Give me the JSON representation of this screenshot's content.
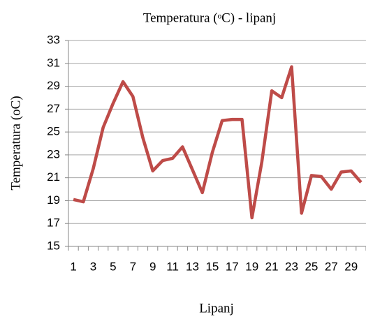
{
  "chart_data": {
    "type": "line",
    "title": "Temperatura (ᵒC) - lipanj",
    "y_label": "Temperatura (oC)",
    "x_label": "Lipanj",
    "categories": [
      1,
      null,
      3,
      null,
      5,
      null,
      7,
      null,
      9,
      null,
      11,
      null,
      13,
      null,
      15,
      null,
      17,
      null,
      19,
      null,
      21,
      null,
      23,
      null,
      25,
      null,
      27,
      null,
      29,
      null
    ],
    "series": [
      {
        "name": "Temperatura",
        "color": "#be4b48",
        "values": [
          19.1,
          18.9,
          21.8,
          25.4,
          27.5,
          29.4,
          28.1,
          24.5,
          21.6,
          22.5,
          22.7,
          23.7,
          21.7,
          19.7,
          23.2,
          26.0,
          26.1,
          26.1,
          17.5,
          22.4,
          28.6,
          28.0,
          30.7,
          17.9,
          21.2,
          21.1,
          20.0,
          21.5,
          21.6,
          20.6
        ]
      }
    ],
    "ylim": [
      15,
      33
    ],
    "yticks": [
      15,
      17,
      19,
      21,
      23,
      25,
      27,
      29,
      31,
      33
    ],
    "grid": true
  }
}
